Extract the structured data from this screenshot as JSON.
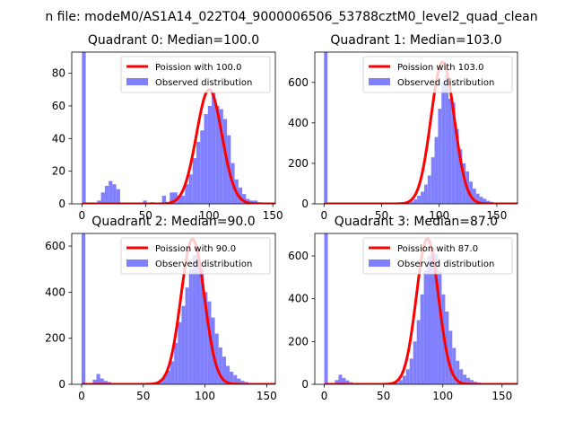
{
  "suptitle": "n file: modeM0/AS1A14_022T04_9000006506_53788cztM0_level2_quad_clean",
  "colors": {
    "hist": "#8080ff",
    "poisson": "#ff0000",
    "axis": "#000000"
  },
  "chart_data": [
    {
      "type": "bar",
      "title": "Quadrant 0: Median=100.0",
      "xlim": [
        -8,
        152
      ],
      "ylim": [
        0,
        93
      ],
      "xticks": [
        0,
        50,
        100,
        150
      ],
      "yticks": [
        0,
        20,
        40,
        60,
        80
      ],
      "legend": {
        "placement": "top-right",
        "entries": [
          "Poission with 100.0",
          "Observed distribution"
        ]
      },
      "hist": {
        "bin_width": 3,
        "bin_starts": [
          0,
          3,
          6,
          9,
          12,
          15,
          18,
          21,
          24,
          27,
          30,
          33,
          36,
          39,
          42,
          45,
          48,
          51,
          54,
          57,
          60,
          63,
          66,
          69,
          72,
          75,
          78,
          81,
          84,
          87,
          90,
          93,
          96,
          99,
          102,
          105,
          108,
          111,
          114,
          117,
          120,
          123,
          126,
          129,
          132,
          135,
          138,
          141
        ],
        "counts": [
          93,
          0,
          0,
          0,
          2,
          7,
          11,
          14,
          12,
          9,
          0,
          0,
          0,
          0,
          0,
          0,
          2,
          0,
          1,
          0,
          0,
          5,
          1,
          7,
          7,
          5,
          5,
          12,
          18,
          28,
          38,
          45,
          55,
          60,
          68,
          60,
          58,
          52,
          42,
          25,
          15,
          10,
          6,
          3,
          2,
          2,
          1,
          0
        ]
      },
      "poisson": {
        "mu": 100.0,
        "peak": 70
      }
    },
    {
      "type": "bar",
      "title": "Quadrant 1: Median=103.0",
      "xlim": [
        -8,
        168
      ],
      "ylim": [
        0,
        750
      ],
      "xticks": [
        0,
        50,
        100,
        150
      ],
      "yticks": [
        0,
        200,
        400,
        600
      ],
      "legend": {
        "placement": "top-right",
        "entries": [
          "Poission with 103.0",
          "Observed distribution"
        ]
      },
      "hist": {
        "bin_width": 3,
        "bin_starts": [
          0,
          3,
          6,
          9,
          12,
          15,
          18,
          21,
          24,
          27,
          30,
          33,
          36,
          39,
          42,
          45,
          48,
          51,
          54,
          57,
          60,
          63,
          66,
          69,
          72,
          75,
          78,
          81,
          84,
          87,
          90,
          93,
          96,
          99,
          102,
          105,
          108,
          111,
          114,
          117,
          120,
          123,
          126,
          129,
          132,
          135,
          138,
          141,
          144,
          147,
          150,
          153,
          156
        ],
        "counts": [
          750,
          3,
          2,
          2,
          1,
          1,
          1,
          1,
          1,
          1,
          1,
          1,
          1,
          1,
          1,
          1,
          1,
          1,
          1,
          1,
          1,
          1,
          1,
          3,
          6,
          12,
          22,
          40,
          60,
          95,
          140,
          230,
          330,
          470,
          600,
          640,
          520,
          500,
          370,
          270,
          200,
          160,
          110,
          75,
          50,
          35,
          25,
          15,
          10,
          6,
          4,
          2,
          1
        ]
      },
      "poisson": {
        "mu": 103.0,
        "peak": 700
      }
    },
    {
      "type": "bar",
      "title": "Quadrant 2: Median=90.0",
      "xlim": [
        -8,
        157
      ],
      "ylim": [
        0,
        655
      ],
      "xticks": [
        0,
        50,
        100,
        150
      ],
      "yticks": [
        0,
        200,
        400,
        600
      ],
      "legend": {
        "placement": "top-right",
        "entries": [
          "Poission with 90.0",
          "Observed distribution"
        ]
      },
      "hist": {
        "bin_width": 3,
        "bin_starts": [
          0,
          3,
          6,
          9,
          12,
          15,
          18,
          21,
          24,
          27,
          30,
          33,
          36,
          39,
          42,
          45,
          48,
          51,
          54,
          57,
          60,
          63,
          66,
          69,
          72,
          75,
          78,
          81,
          84,
          87,
          90,
          93,
          96,
          99,
          102,
          105,
          108,
          111,
          114,
          117,
          120,
          123,
          126,
          129,
          132,
          135,
          138,
          141,
          144
        ],
        "counts": [
          655,
          2,
          3,
          20,
          45,
          25,
          15,
          10,
          5,
          3,
          2,
          1,
          1,
          1,
          1,
          1,
          1,
          1,
          1,
          2,
          10,
          20,
          40,
          60,
          100,
          180,
          270,
          340,
          420,
          500,
          560,
          590,
          500,
          400,
          360,
          290,
          220,
          160,
          120,
          80,
          55,
          40,
          25,
          15,
          10,
          6,
          4,
          2,
          1
        ]
      },
      "poisson": {
        "mu": 90.0,
        "peak": 630
      }
    },
    {
      "type": "bar",
      "title": "Quadrant 3: Median=87.0",
      "xlim": [
        -8,
        163
      ],
      "ylim": [
        0,
        705
      ],
      "xticks": [
        0,
        50,
        100,
        150
      ],
      "yticks": [
        0,
        200,
        400,
        600
      ],
      "legend": {
        "placement": "top-right",
        "entries": [
          "Poission with 87.0",
          "Observed distribution"
        ]
      },
      "hist": {
        "bin_width": 3,
        "bin_starts": [
          0,
          3,
          6,
          9,
          12,
          15,
          18,
          21,
          24,
          27,
          30,
          33,
          36,
          39,
          42,
          45,
          48,
          51,
          54,
          57,
          60,
          63,
          66,
          69,
          72,
          75,
          78,
          81,
          84,
          87,
          90,
          93,
          96,
          99,
          102,
          105,
          108,
          111,
          114,
          117,
          120,
          123,
          126,
          129,
          132,
          135,
          138,
          141,
          144,
          147,
          150
        ],
        "counts": [
          705,
          2,
          3,
          20,
          45,
          30,
          18,
          10,
          5,
          3,
          2,
          1,
          1,
          1,
          1,
          1,
          1,
          1,
          1,
          2,
          8,
          20,
          40,
          70,
          120,
          200,
          300,
          420,
          530,
          600,
          640,
          610,
          530,
          420,
          340,
          250,
          170,
          110,
          70,
          45,
          30,
          20,
          12,
          8,
          5,
          3,
          2,
          1,
          1,
          1,
          1
        ]
      },
      "poisson": {
        "mu": 87.0,
        "peak": 680
      }
    }
  ]
}
